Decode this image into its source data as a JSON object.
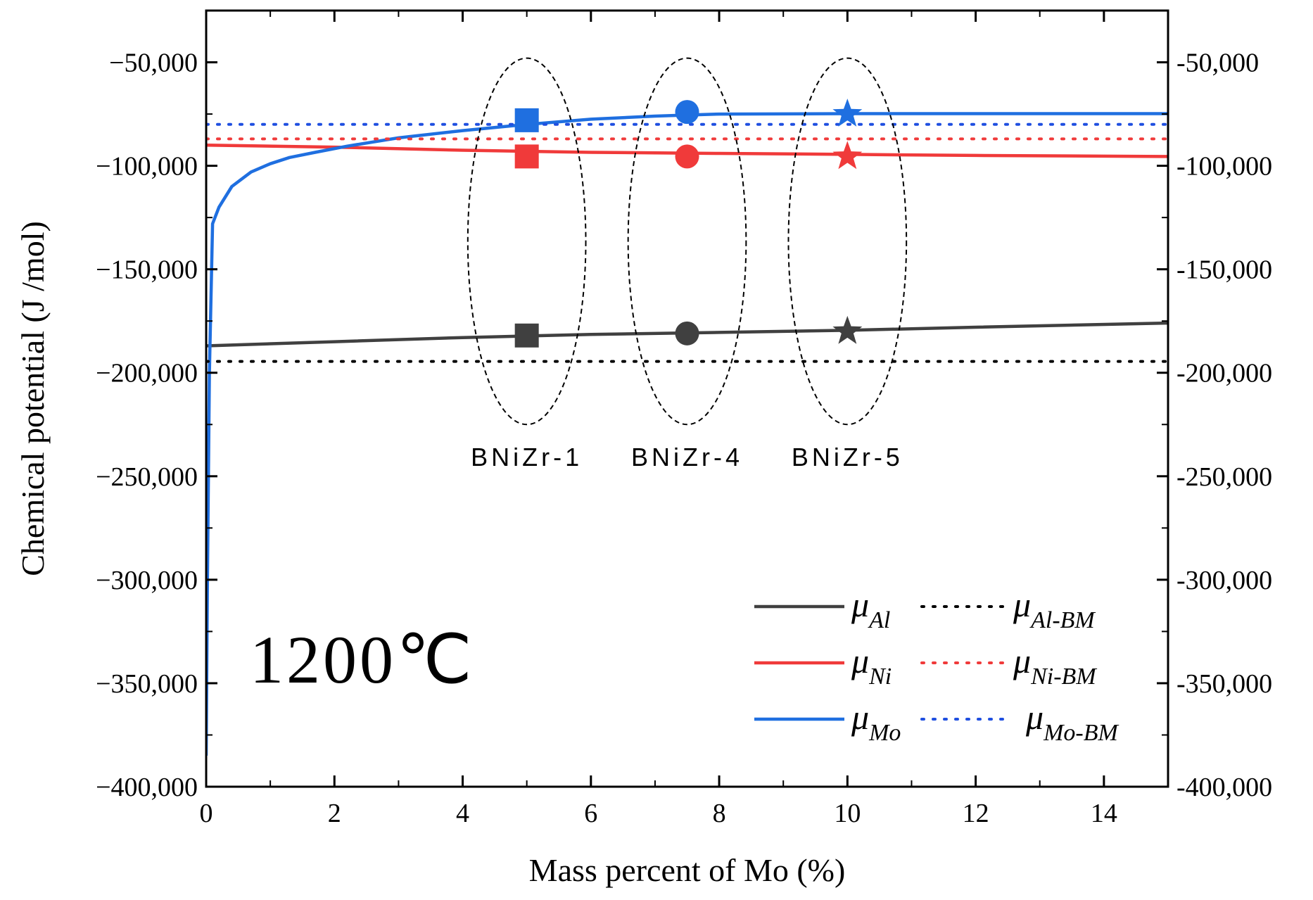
{
  "chart_data": {
    "type": "line",
    "title": "",
    "annotation": "1200℃",
    "xlabel": "Mass percent of Mo (%)",
    "ylabel": "Chemical potential (J /mol)",
    "xlim": [
      0,
      15
    ],
    "ylim": [
      -400000,
      -25000
    ],
    "x_ticks": [
      0,
      2,
      4,
      6,
      8,
      10,
      12,
      14
    ],
    "x_tick_labels": [
      "0",
      "2",
      "4",
      "6",
      "8",
      "10",
      "12",
      "14"
    ],
    "y_ticks": [
      -400000,
      -350000,
      -300000,
      -250000,
      -200000,
      -150000,
      -100000,
      -50000
    ],
    "y_tick_labels": [
      "−400,000",
      "−350,000",
      "−300,000",
      "−250,000",
      "−200,000",
      "−150,000",
      "−100,000",
      "−50,000"
    ],
    "y_tick_labels_right": [
      "-400,000",
      "-350,000",
      "-300,000",
      "-250,000",
      "-200,000",
      "-150,000",
      "-100,000",
      "-50,000"
    ],
    "series": [
      {
        "name": "μAl",
        "color": "#404040",
        "style": "solid",
        "x": [
          0,
          2,
          4,
          6,
          8,
          10,
          12,
          15
        ],
        "y": [
          -187000,
          -185000,
          -183000,
          -181500,
          -180500,
          -179500,
          -178000,
          -176000
        ]
      },
      {
        "name": "μNi",
        "color": "#f03a3a",
        "style": "solid",
        "x": [
          0,
          2,
          4,
          6,
          8,
          10,
          12,
          15
        ],
        "y": [
          -90000,
          -91000,
          -92500,
          -93500,
          -94000,
          -94500,
          -95000,
          -95500
        ]
      },
      {
        "name": "μMo",
        "color": "#1f6fe0",
        "style": "solid",
        "x": [
          0,
          0.02,
          0.05,
          0.1,
          0.2,
          0.4,
          0.7,
          1.0,
          1.3,
          1.7,
          2.2,
          3.0,
          4.0,
          5.0,
          6.0,
          7.0,
          7.5,
          8.0,
          10.0,
          12.0,
          15.0
        ],
        "y": [
          -385000,
          -300000,
          -200000,
          -128000,
          -120000,
          -110000,
          -103000,
          -99000,
          -96000,
          -93500,
          -90500,
          -86500,
          -83000,
          -80000,
          -77500,
          -76000,
          -75500,
          -75000,
          -74800,
          -74800,
          -74800
        ]
      },
      {
        "name": "μAl-BM",
        "color": "#000000",
        "style": "dotted",
        "x": [
          0,
          15
        ],
        "y": [
          -194500,
          -194500
        ]
      },
      {
        "name": "μNi-BM",
        "color": "#f03a3a",
        "style": "dotted",
        "x": [
          0,
          15
        ],
        "y": [
          -87000,
          -87000
        ]
      },
      {
        "name": "μMo-BM",
        "color": "#1f4fe0",
        "style": "dotted",
        "x": [
          0,
          15
        ],
        "y": [
          -80000,
          -80000
        ]
      }
    ],
    "markers": [
      {
        "sample": "BNiZr-1",
        "shape": "square",
        "x": 5,
        "values": {
          "Mo": -78000,
          "Ni": -95500,
          "Al": -182000
        }
      },
      {
        "sample": "BNiZr-4",
        "shape": "circle",
        "x": 7.5,
        "values": {
          "Mo": -74000,
          "Ni": -95500,
          "Al": -181000
        }
      },
      {
        "sample": "BNiZr-5",
        "shape": "star",
        "x": 10,
        "values": {
          "Mo": -75000,
          "Ni": -95500,
          "Al": -180000
        }
      }
    ],
    "groups": [
      {
        "label": "BNiZr-1",
        "x": 5,
        "y_top": -48000,
        "y_bottom": -225000,
        "half_width_x": 0.92
      },
      {
        "label": "BNiZr-4",
        "x": 7.5,
        "y_top": -48000,
        "y_bottom": -225000,
        "half_width_x": 0.92
      },
      {
        "label": "BNiZr-5",
        "x": 10,
        "y_top": -48000,
        "y_bottom": -225000,
        "half_width_x": 0.92
      }
    ],
    "legend": {
      "placement": "bottom-right",
      "rows": [
        {
          "solid": {
            "sym": "μ",
            "sub": "Al",
            "color": "#404040"
          },
          "dotted": {
            "sym": "μ",
            "sub": "Al-BM",
            "color": "#000000"
          }
        },
        {
          "solid": {
            "sym": "μ",
            "sub": "Ni",
            "color": "#f03a3a"
          },
          "dotted": {
            "sym": "μ",
            "sub": "Ni-BM",
            "color": "#f03a3a"
          }
        },
        {
          "solid": {
            "sym": "μ",
            "sub": "Mo",
            "color": "#1f6fe0"
          },
          "dotted": {
            "sym": "μ",
            "sub": "Mo-BM",
            "color": "#1f4fe0"
          }
        }
      ]
    }
  }
}
